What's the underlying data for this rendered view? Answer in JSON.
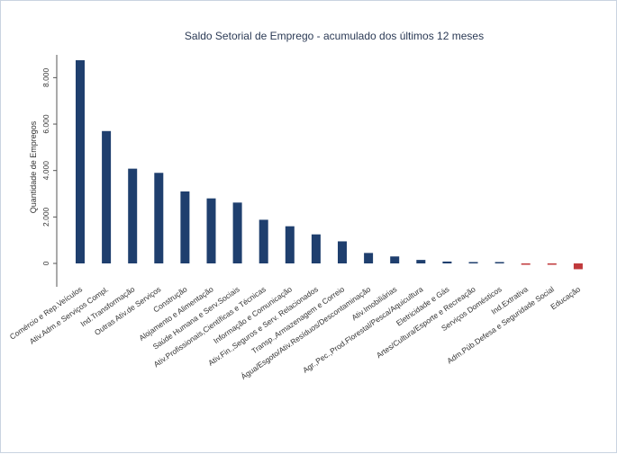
{
  "chart_data": {
    "type": "bar",
    "title": "Saldo Setorial de Emprego - acumulado dos últimos 12 meses",
    "ylabel": "Quantidade de Empregos",
    "xlabel": "",
    "ylim": [
      -400,
      9400
    ],
    "yticks": [
      0,
      2000,
      4000,
      6000,
      8000
    ],
    "ytick_labels": [
      "0",
      "2.000",
      "4.000",
      "6.000",
      "8.000"
    ],
    "grid": false,
    "legend": "none",
    "colors": {
      "positive": "#1f3f6e",
      "negative": "#c0393b"
    },
    "categories": [
      "Comércio e Rep.Veículos",
      "Ativ.Adm.e Serviços Compl.",
      "Ind.Transformação",
      "Outras Ativ.de Serviços",
      "Construção",
      "Alojamento e Alimentação",
      "Saúde Humana e Serv.Sociais",
      "Ativ.Profissionais,Científicas e Técnicas",
      "Informação e Comunicação",
      "Ativ.Fin.,Seguros e Serv. Relacionados",
      "Transp.,Armazenagem e Correio",
      "Água/Esgoto/Ativ.Resíduos/Descontaminação",
      "Ativ.Imobiliárias",
      "Agr.,Pec.,Prod.Florestal/Pesca/Aquicultura",
      "Eletricidade e Gás",
      "Artes/Cultura/Esporte e Recreação",
      "Serviços Domésticos",
      "Ind.Extrativa",
      "Adm.Púb.Defesa e Seguridade Social",
      "Educação"
    ],
    "values": [
      8750,
      5700,
      4080,
      3900,
      3100,
      2800,
      2620,
      1880,
      1600,
      1250,
      950,
      450,
      300,
      150,
      80,
      40,
      30,
      -20,
      -50,
      -250
    ]
  }
}
